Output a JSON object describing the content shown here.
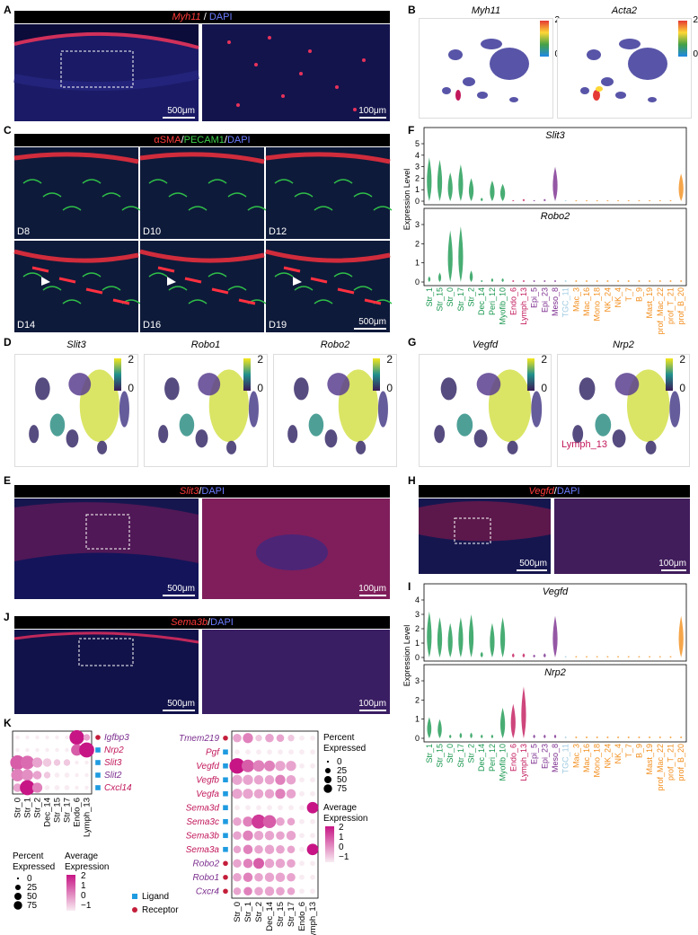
{
  "panels": {
    "A": {
      "letter": "A",
      "title_gene": "Myh11",
      "title_sep": " / ",
      "title_stain": "DAPI",
      "scale1": "500μm",
      "scale2": "100μm"
    },
    "B": {
      "letter": "B",
      "maps": [
        {
          "gene": "Myh11"
        },
        {
          "gene": "Acta2"
        }
      ],
      "scale_max": "2",
      "scale_min": "0"
    },
    "C": {
      "letter": "C",
      "title_a": "αSMA",
      "title_b": "PECAM1",
      "title_c": "DAPI",
      "days": [
        "D8",
        "D10",
        "D12",
        "D14",
        "D16",
        "D19"
      ],
      "scale": "500μm"
    },
    "D": {
      "letter": "D",
      "genes": [
        "Slit3",
        "Robo1",
        "Robo2"
      ],
      "scale_max": "2",
      "scale_min": "0"
    },
    "E": {
      "letter": "E",
      "title_gene": "Slit3",
      "title_stain": "DAPI",
      "scale1": "500μm",
      "scale2": "100μm"
    },
    "F": {
      "letter": "F",
      "plots": [
        {
          "gene": "Slit3"
        },
        {
          "gene": "Robo2"
        }
      ],
      "ylabel": "Expression Level",
      "yticks": [
        "0",
        "1",
        "2",
        "3",
        "4",
        "5"
      ]
    },
    "G": {
      "letter": "G",
      "genes": [
        "Vegfd",
        "Nrp2"
      ],
      "annotation": "Lymph_13",
      "scale_max": "2",
      "scale_min": "0"
    },
    "H": {
      "letter": "H",
      "title_gene": "Vegfd",
      "title_stain": "DAPI",
      "scale1": "500μm",
      "scale2": "100μm"
    },
    "I": {
      "letter": "I",
      "plots": [
        {
          "gene": "Vegfd"
        },
        {
          "gene": "Nrp2"
        }
      ],
      "ylabel": "Expression Level",
      "yticks": [
        "0",
        "1",
        "2",
        "3",
        "4"
      ]
    },
    "J": {
      "letter": "J",
      "title_gene": "Sema3b",
      "title_stain": "DAPI",
      "scale1": "500μm",
      "scale2": "100μm"
    },
    "K": {
      "letter": "K",
      "left_genes": [
        "Igfbp3",
        "Nrp2",
        "Slit3",
        "Slit2",
        "Cxcl14"
      ],
      "left_clusters": [
        "Str_0",
        "Str_1",
        "Str_2",
        "Dec_14",
        "Str_15",
        "Str_17",
        "Endo_6",
        "Lymph_13"
      ],
      "right_genes": [
        "Tmem219",
        "Pgf",
        "Vegfd",
        "Vegfb",
        "Vegfa",
        "Sema3d",
        "Sema3c",
        "Sema3b",
        "Sema3a",
        "Robo2",
        "Robo1",
        "Cxcr4"
      ],
      "right_clusters": [
        "Str_0",
        "Str_1",
        "Str_2",
        "Dec_14",
        "Str_15",
        "Str_17",
        "Endo_6",
        "Lymph_13"
      ],
      "legend_pct_title1": "Percent",
      "legend_pct_title2": "Expressed",
      "legend_pct": [
        "0",
        "25",
        "50",
        "75"
      ],
      "legend_avg_title1": "Average",
      "legend_avg_title2": "Expression",
      "legend_avg": [
        "2",
        "1",
        "0",
        "−1"
      ],
      "legend_ligand": "Ligand",
      "legend_receptor": "Receptor"
    }
  },
  "clusters": [
    {
      "name": "Str_1",
      "color": "#1a9850"
    },
    {
      "name": "Str_15",
      "color": "#1a9850"
    },
    {
      "name": "Str_0",
      "color": "#1a9850"
    },
    {
      "name": "Str_17",
      "color": "#1a9850"
    },
    {
      "name": "Str_2",
      "color": "#1a9850"
    },
    {
      "name": "Dec_14",
      "color": "#1a9850"
    },
    {
      "name": "Peri_12",
      "color": "#1a9850"
    },
    {
      "name": "Myofib_10",
      "color": "#1a9850"
    },
    {
      "name": "Endo_6",
      "color": "#c2185b"
    },
    {
      "name": "Lymph_13",
      "color": "#c2185b"
    },
    {
      "name": "Epi_5",
      "color": "#7b2d8e"
    },
    {
      "name": "Epi_23",
      "color": "#7b2d8e"
    },
    {
      "name": "Meso_8",
      "color": "#7b2d8e"
    },
    {
      "name": "TGC_11",
      "color": "#9ecae1"
    },
    {
      "name": "Mac_3",
      "color": "#f28e1c"
    },
    {
      "name": "Mac_16",
      "color": "#f28e1c"
    },
    {
      "name": "Mono_18",
      "color": "#f28e1c"
    },
    {
      "name": "NK_24",
      "color": "#f28e1c"
    },
    {
      "name": "NK_4",
      "color": "#f28e1c"
    },
    {
      "name": "T_7",
      "color": "#f28e1c"
    },
    {
      "name": "B_9",
      "color": "#f28e1c"
    },
    {
      "name": "Mast_19",
      "color": "#f28e1c"
    },
    {
      "name": "prof_Mac_22",
      "color": "#f28e1c"
    },
    {
      "name": "prof_T_21",
      "color": "#f28e1c"
    },
    {
      "name": "prof_B_20",
      "color": "#f28e1c"
    }
  ],
  "chart_data": [
    {
      "type": "violin",
      "panel": "F",
      "title": "Slit3",
      "ylabel": "Expression Level",
      "ylim": [
        0,
        5
      ],
      "categories": [
        "Str_1",
        "Str_15",
        "Str_0",
        "Str_17",
        "Str_2",
        "Dec_14",
        "Peri_12",
        "Myofib_10",
        "Endo_6",
        "Lymph_13",
        "Epi_5",
        "Epi_23",
        "Meso_8",
        "TGC_11",
        "Mac_3",
        "Mac_16",
        "Mono_18",
        "NK_24",
        "NK_4",
        "T_7",
        "B_9",
        "Mast_19",
        "prof_Mac_22",
        "prof_T_21",
        "prof_B_20"
      ],
      "max_values": [
        3.8,
        3.6,
        2.5,
        3.2,
        2.0,
        0.3,
        1.8,
        1.5,
        0.1,
        0.2,
        0.1,
        0.2,
        3.0,
        0.1,
        0.1,
        0.1,
        0.1,
        0.1,
        0.1,
        0.1,
        0.1,
        0.1,
        0.1,
        0.1,
        2.4
      ]
    },
    {
      "type": "violin",
      "panel": "F",
      "title": "Robo2",
      "ylabel": "Expression Level",
      "ylim": [
        0,
        3
      ],
      "categories": [
        "Str_1",
        "Str_15",
        "Str_0",
        "Str_17",
        "Str_2",
        "Dec_14",
        "Peri_12",
        "Myofib_10",
        "Endo_6",
        "Lymph_13",
        "Epi_5",
        "Epi_23",
        "Meso_8",
        "TGC_11",
        "Mac_3",
        "Mac_16",
        "Mono_18",
        "NK_24",
        "NK_4",
        "T_7",
        "B_9",
        "Mast_19",
        "prof_Mac_22",
        "prof_T_21",
        "prof_B_20"
      ],
      "max_values": [
        0.3,
        0.5,
        2.7,
        2.9,
        0.6,
        0.1,
        0.2,
        0.2,
        0.1,
        0.1,
        0.1,
        0.1,
        0.1,
        0.1,
        0.1,
        0.1,
        0.1,
        0.1,
        0.1,
        0.1,
        0.1,
        0.1,
        0.1,
        0.1,
        0.1
      ]
    },
    {
      "type": "violin",
      "panel": "I",
      "title": "Vegfd",
      "ylabel": "Expression Level",
      "ylim": [
        0,
        4
      ],
      "categories": [
        "Str_1",
        "Str_15",
        "Str_0",
        "Str_17",
        "Str_2",
        "Dec_14",
        "Peri_12",
        "Myofib_10",
        "Endo_6",
        "Lymph_13",
        "Epi_5",
        "Epi_23",
        "Meso_8",
        "TGC_11",
        "Mac_3",
        "Mac_16",
        "Mono_18",
        "NK_24",
        "NK_4",
        "T_7",
        "B_9",
        "Mast_19",
        "prof_Mac_22",
        "prof_T_21",
        "prof_B_20"
      ],
      "max_values": [
        3.2,
        2.8,
        2.4,
        2.8,
        3.0,
        0.4,
        2.4,
        2.8,
        0.3,
        0.3,
        0.2,
        0.3,
        2.9,
        0.1,
        0.1,
        0.1,
        0.1,
        0.1,
        0.1,
        0.1,
        0.1,
        0.1,
        0.1,
        0.1,
        2.9
      ]
    },
    {
      "type": "violin",
      "panel": "I",
      "title": "Nrp2",
      "ylabel": "Expression Level",
      "ylim": [
        0,
        3
      ],
      "categories": [
        "Str_1",
        "Str_15",
        "Str_0",
        "Str_17",
        "Str_2",
        "Dec_14",
        "Peri_12",
        "Myofib_10",
        "Endo_6",
        "Lymph_13",
        "Epi_5",
        "Epi_23",
        "Meso_8",
        "TGC_11",
        "Mac_3",
        "Mac_16",
        "Mono_18",
        "NK_24",
        "NK_4",
        "T_7",
        "B_9",
        "Mast_19",
        "prof_Mac_22",
        "prof_T_21",
        "prof_B_20"
      ],
      "max_values": [
        1.1,
        1.0,
        0.2,
        0.3,
        0.3,
        0.2,
        0.2,
        1.6,
        1.8,
        2.7,
        0.2,
        0.2,
        0.2,
        0.1,
        0.1,
        0.1,
        0.1,
        0.1,
        0.1,
        0.1,
        0.1,
        0.1,
        0.1,
        0.1,
        0.1
      ]
    },
    {
      "type": "dotplot",
      "panel": "K-left",
      "genes": [
        "Igfbp3",
        "Nrp2",
        "Slit3",
        "Slit2",
        "Cxcl14"
      ],
      "categories": [
        "Str_0",
        "Str_1",
        "Str_2",
        "Dec_14",
        "Str_15",
        "Str_17",
        "Endo_6",
        "Lymph_13"
      ],
      "pct": [
        [
          2,
          2,
          2,
          2,
          2,
          2,
          70,
          10
        ],
        [
          2,
          2,
          2,
          2,
          2,
          2,
          40,
          75
        ],
        [
          70,
          60,
          30,
          20,
          10,
          10,
          2,
          2
        ],
        [
          50,
          40,
          20,
          10,
          5,
          5,
          2,
          2
        ],
        [
          20,
          75,
          30,
          5,
          5,
          5,
          2,
          2
        ]
      ],
      "avg": [
        [
          -1,
          -1,
          -1,
          -1,
          -1,
          -1,
          2,
          0
        ],
        [
          -1,
          -1,
          -1,
          -1,
          -1,
          -1,
          1,
          2
        ],
        [
          1,
          0.8,
          0,
          -0.5,
          -0.5,
          -0.5,
          -1,
          -1
        ],
        [
          0.5,
          0.3,
          0,
          -0.5,
          -1,
          -1,
          -1,
          -1
        ],
        [
          0,
          2,
          0.5,
          -1,
          -1,
          -1,
          -1,
          -1
        ]
      ]
    },
    {
      "type": "dotplot",
      "panel": "K-right",
      "genes": [
        "Tmem219",
        "Pgf",
        "Vegfd",
        "Vegfb",
        "Vegfa",
        "Sema3d",
        "Sema3c",
        "Sema3b",
        "Sema3a",
        "Robo2",
        "Robo1",
        "Cxcr4"
      ],
      "categories": [
        "Str_0",
        "Str_1",
        "Str_2",
        "Dec_14",
        "Str_15",
        "Str_17",
        "Endo_6",
        "Lymph_13"
      ],
      "pct": [
        [
          20,
          30,
          10,
          20,
          15,
          10,
          5,
          5
        ],
        [
          5,
          5,
          5,
          5,
          5,
          5,
          5,
          5
        ],
        [
          80,
          50,
          40,
          35,
          30,
          30,
          5,
          5
        ],
        [
          30,
          30,
          25,
          25,
          30,
          25,
          5,
          5
        ],
        [
          30,
          30,
          25,
          25,
          30,
          25,
          5,
          5
        ],
        [
          5,
          5,
          5,
          5,
          5,
          5,
          5,
          40
        ],
        [
          20,
          30,
          65,
          55,
          20,
          15,
          5,
          5
        ],
        [
          20,
          30,
          25,
          25,
          20,
          25,
          5,
          5
        ],
        [
          15,
          25,
          20,
          25,
          20,
          15,
          5,
          40
        ],
        [
          20,
          25,
          35,
          25,
          25,
          20,
          5,
          5
        ],
        [
          20,
          25,
          20,
          25,
          25,
          20,
          5,
          5
        ],
        [
          15,
          20,
          20,
          25,
          20,
          15,
          5,
          5
        ]
      ],
      "avg": [
        [
          0,
          0.5,
          -0.5,
          0,
          0,
          -0.5,
          -1,
          -1
        ],
        [
          -1,
          -1,
          -1,
          -1,
          -1,
          -1,
          -1,
          -1
        ],
        [
          2,
          1,
          0.5,
          0.5,
          0,
          0,
          -1,
          -1
        ],
        [
          0,
          0,
          0,
          0,
          0.5,
          0,
          -1,
          -1
        ],
        [
          0,
          0,
          0,
          0,
          0.5,
          0,
          -1,
          -1
        ],
        [
          -1,
          -1,
          -1,
          -1,
          -1,
          -1,
          -1,
          2
        ],
        [
          0,
          0.5,
          1.5,
          1,
          0,
          0,
          -1,
          -1
        ],
        [
          0,
          0.5,
          0,
          0,
          0,
          0,
          -1,
          -1
        ],
        [
          0,
          0.5,
          0,
          0,
          0,
          0,
          -1,
          2
        ],
        [
          0,
          0.5,
          1,
          0,
          0,
          0,
          -1,
          -1
        ],
        [
          0,
          0.5,
          0,
          0,
          0,
          0,
          -1,
          -1
        ],
        [
          0,
          0.5,
          0,
          0,
          0,
          0,
          -1,
          -1
        ]
      ]
    }
  ]
}
